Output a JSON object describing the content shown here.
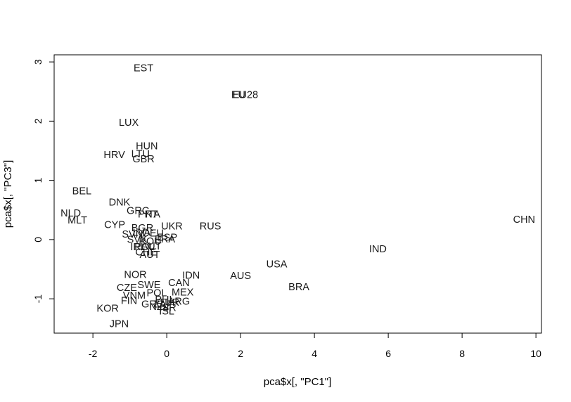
{
  "chart_data": {
    "type": "scatter",
    "xlabel": "pca$x[, \"PC1\"]",
    "ylabel": "pca$x[, \"PC3\"]",
    "xlim": [
      -3.05,
      10.15
    ],
    "ylim": [
      -1.58,
      3.12
    ],
    "xticks": [
      -2,
      0,
      2,
      4,
      6,
      8,
      10
    ],
    "yticks": [
      -1,
      0,
      1,
      2,
      3
    ],
    "xtick_labels": [
      "-2",
      "0",
      "2",
      "4",
      "6",
      "8",
      "10"
    ],
    "ytick_labels": [
      "-1",
      "0",
      "1",
      "2",
      "3"
    ],
    "points": [
      {
        "label": "EST",
        "x": -0.63,
        "y": 2.89
      },
      {
        "label": "EU",
        "x": 1.94,
        "y": 2.44
      },
      {
        "label": "EU28",
        "x": 2.13,
        "y": 2.44
      },
      {
        "label": "LUX",
        "x": -1.03,
        "y": 1.97
      },
      {
        "label": "HUN",
        "x": -0.54,
        "y": 1.57
      },
      {
        "label": "HRV",
        "x": -1.42,
        "y": 1.42
      },
      {
        "label": "LTU",
        "x": -0.71,
        "y": 1.44
      },
      {
        "label": "GBR",
        "x": -0.63,
        "y": 1.35
      },
      {
        "label": "BEL",
        "x": -2.3,
        "y": 0.81
      },
      {
        "label": "DNK",
        "x": -1.28,
        "y": 0.62
      },
      {
        "label": "GRC",
        "x": -0.78,
        "y": 0.48
      },
      {
        "label": "PRT",
        "x": -0.51,
        "y": 0.42
      },
      {
        "label": "ITA",
        "x": -0.38,
        "y": 0.42
      },
      {
        "label": "NLD",
        "x": -2.6,
        "y": 0.44
      },
      {
        "label": "MLT",
        "x": -2.42,
        "y": 0.32
      },
      {
        "label": "CYP",
        "x": -1.41,
        "y": 0.24
      },
      {
        "label": "BGR",
        "x": -0.66,
        "y": 0.19
      },
      {
        "label": "UKR",
        "x": 0.14,
        "y": 0.22
      },
      {
        "label": "RUS",
        "x": 1.18,
        "y": 0.22
      },
      {
        "label": "SVN",
        "x": -0.93,
        "y": 0.08
      },
      {
        "label": "LVA",
        "x": -0.68,
        "y": 0.11
      },
      {
        "label": "DEU",
        "x": -0.37,
        "y": 0.1
      },
      {
        "label": "ESP",
        "x": 0.01,
        "y": 0.03
      },
      {
        "label": "SVK",
        "x": -0.8,
        "y": -0.01
      },
      {
        "label": "ROU",
        "x": -0.45,
        "y": -0.04
      },
      {
        "label": "FRA",
        "x": -0.05,
        "y": 0.0
      },
      {
        "label": "IRL",
        "x": -0.77,
        "y": -0.13
      },
      {
        "label": "POL",
        "x": -0.6,
        "y": -0.13
      },
      {
        "label": "AUT",
        "x": -0.42,
        "y": -0.12
      },
      {
        "label": "CHE",
        "x": -0.56,
        "y": -0.22
      },
      {
        "label": "AUT",
        "x": -0.46,
        "y": -0.26
      },
      {
        "label": "CHN",
        "x": 9.68,
        "y": 0.33
      },
      {
        "label": "IND",
        "x": 5.72,
        "y": -0.17
      },
      {
        "label": "USA",
        "x": 2.98,
        "y": -0.42
      },
      {
        "label": "AUS",
        "x": 2.0,
        "y": -0.62
      },
      {
        "label": "BRA",
        "x": 3.58,
        "y": -0.81
      },
      {
        "label": "IDN",
        "x": 0.66,
        "y": -0.61
      },
      {
        "label": "NOR",
        "x": -0.85,
        "y": -0.6
      },
      {
        "label": "CAN",
        "x": 0.33,
        "y": -0.74
      },
      {
        "label": "SWE",
        "x": -0.48,
        "y": -0.77
      },
      {
        "label": "CZE",
        "x": -1.08,
        "y": -0.82
      },
      {
        "label": "MEX",
        "x": 0.43,
        "y": -0.9
      },
      {
        "label": "POL",
        "x": -0.27,
        "y": -0.91
      },
      {
        "label": "VNM",
        "x": -0.88,
        "y": -0.95
      },
      {
        "label": "FIN",
        "x": -1.02,
        "y": -1.04
      },
      {
        "label": "PHL",
        "x": -0.05,
        "y": -1.02
      },
      {
        "label": "ARG",
        "x": 0.33,
        "y": -1.05
      },
      {
        "label": "TUR",
        "x": 0.06,
        "y": -1.07
      },
      {
        "label": "GRC",
        "x": -0.38,
        "y": -1.1
      },
      {
        "label": "ZAF",
        "x": -0.1,
        "y": -1.1
      },
      {
        "label": "NZL",
        "x": -0.21,
        "y": -1.14
      },
      {
        "label": "ISR",
        "x": 0.03,
        "y": -1.16
      },
      {
        "label": "ISL",
        "x": 0.0,
        "y": -1.22
      },
      {
        "label": "KOR",
        "x": -1.6,
        "y": -1.17
      },
      {
        "label": "JPN",
        "x": -1.29,
        "y": -1.43
      }
    ]
  }
}
